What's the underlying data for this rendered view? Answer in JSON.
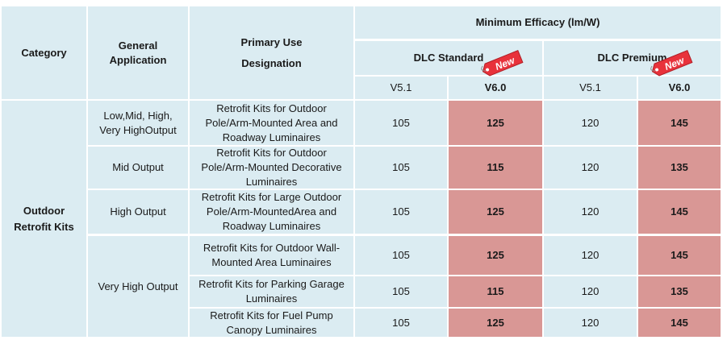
{
  "colors": {
    "cell_bg": "#dbecf2",
    "highlight_bg": "#d99795",
    "grid": "#ffffff",
    "tag_red": "#e8323b"
  },
  "table": {
    "headers": {
      "category": "Category",
      "general_application": "General Application",
      "primary_use": "Primary Use Designation",
      "min_efficacy": "Minimum Efficacy (lm/W)",
      "dlc_standard": "DLC Standard",
      "dlc_premium": "DLC Premium",
      "v51": "V5.1",
      "v60": "V6.0",
      "new_badge": "New"
    },
    "category": "Outdoor Retrofit Kits",
    "groups": [
      "Low,Mid, High, Very HighOutput",
      "Mid Output",
      "High Output",
      "Very High Output"
    ],
    "rows": [
      {
        "use": "Retrofit Kits for Outdoor Pole/Arm-Mounted Area and Roadway Luminaires",
        "std_v51": "105",
        "std_v60": "125",
        "prem_v51": "120",
        "prem_v60": "145"
      },
      {
        "use": "Retrofit Kits for Outdoor Pole/Arm-Mounted Decorative Luminaires",
        "std_v51": "105",
        "std_v60": "115",
        "prem_v51": "120",
        "prem_v60": "135"
      },
      {
        "use": "Retrofit Kits for Large Outdoor Pole/Arm-MountedArea and Roadway Luminaires",
        "std_v51": "105",
        "std_v60": "125",
        "prem_v51": "120",
        "prem_v60": "145"
      },
      {
        "use": "Retrofit Kits for Outdoor Wall-Mounted Area Luminaires",
        "std_v51": "105",
        "std_v60": "125",
        "prem_v51": "120",
        "prem_v60": "145"
      },
      {
        "use": "Retrofit Kits for Parking Garage Luminaires",
        "std_v51": "105",
        "std_v60": "115",
        "prem_v51": "120",
        "prem_v60": "135"
      },
      {
        "use": "Retrofit Kits for Fuel Pump Canopy Luminaires",
        "std_v51": "105",
        "std_v60": "125",
        "prem_v51": "120",
        "prem_v60": "145"
      }
    ]
  }
}
